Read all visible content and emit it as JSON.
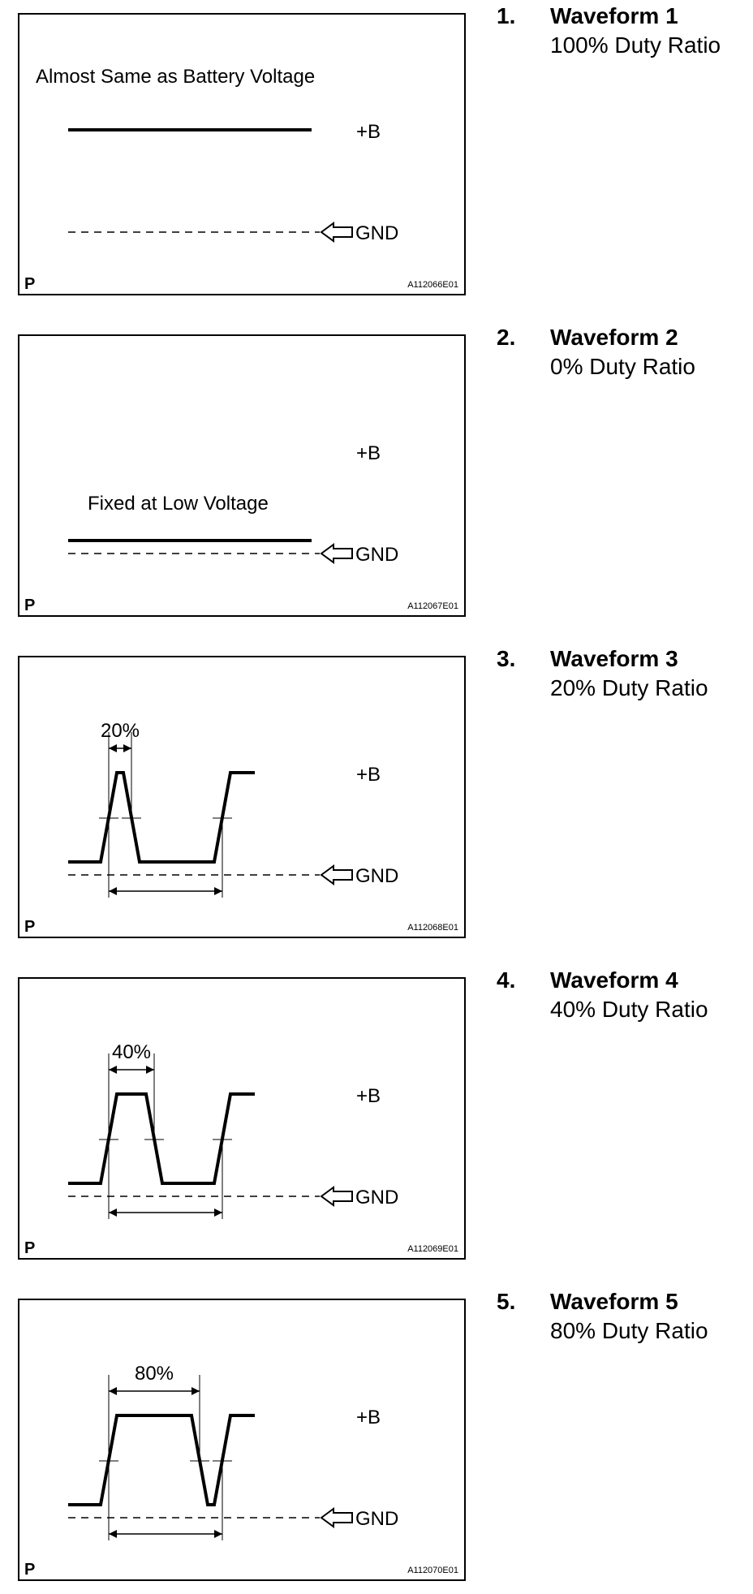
{
  "labels": {
    "plus_b": "+B",
    "gnd": "GND",
    "panel_marker": "P"
  },
  "waveforms": [
    {
      "number": "1.",
      "title": "Waveform 1",
      "duty": "100% Duty Ratio",
      "note": "Almost Same as Battery Voltage",
      "pulse_label": "",
      "code": "A112066E01",
      "duty_ratio": 1.0
    },
    {
      "number": "2.",
      "title": "Waveform 2",
      "duty": "0% Duty Ratio",
      "note": "Fixed at Low Voltage",
      "pulse_label": "",
      "code": "A112067E01",
      "duty_ratio": 0.0
    },
    {
      "number": "3.",
      "title": "Waveform 3",
      "duty": "20% Duty Ratio",
      "note": "",
      "pulse_label": "20%",
      "code": "A112068E01",
      "duty_ratio": 0.2
    },
    {
      "number": "4.",
      "title": "Waveform 4",
      "duty": "40% Duty Ratio",
      "note": "",
      "pulse_label": "40%",
      "code": "A112069E01",
      "duty_ratio": 0.4
    },
    {
      "number": "5.",
      "title": "Waveform 5",
      "duty": "80% Duty Ratio",
      "note": "",
      "pulse_label": "80%",
      "code": "A112070E01",
      "duty_ratio": 0.8
    }
  ]
}
